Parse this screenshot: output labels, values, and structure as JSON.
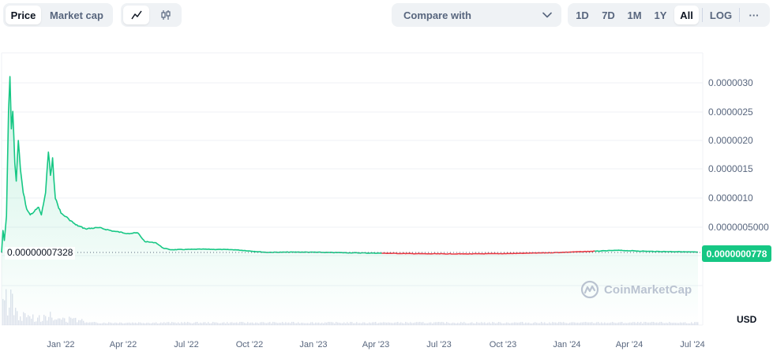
{
  "toolbar": {
    "type_tabs": [
      {
        "label": "Price",
        "active": true
      },
      {
        "label": "Market cap",
        "active": false
      }
    ],
    "chart_types": [
      {
        "icon": "line-chart-icon",
        "active": true
      },
      {
        "icon": "candlestick-icon",
        "active": false
      }
    ],
    "compare_label": "Compare with",
    "ranges": [
      {
        "label": "1D",
        "active": false
      },
      {
        "label": "7D",
        "active": false
      },
      {
        "label": "1M",
        "active": false
      },
      {
        "label": "1Y",
        "active": false
      },
      {
        "label": "All",
        "active": true
      }
    ],
    "log_label": "LOG",
    "more_label": "···"
  },
  "current_price": "0.0000000778",
  "start_price": "0.00000007328",
  "currency": "USD",
  "watermark": "CoinMarketCap",
  "colors": {
    "up": "#16c784",
    "down": "#ea3943",
    "grid": "#eff2f5",
    "text": "#58667e"
  },
  "chart_data": {
    "type": "line",
    "title": "",
    "xlabel": "",
    "ylabel": "",
    "x_ticks": [
      "Jan '22",
      "Apr '22",
      "Jul '22",
      "Oct '22",
      "Jan '23",
      "Apr '23",
      "Jul '23",
      "Oct '23",
      "Jan '24",
      "Apr '24",
      "Jul '24"
    ],
    "y_ticks": [
      "0.0000030",
      "0.0000025",
      "0.0000020",
      "0.0000015",
      "0.0000010",
      "0.0000005000"
    ],
    "ylim": [
      0,
      3.3e-06
    ],
    "series": [
      {
        "values": [
          [
            "2021-11-01",
            7.328e-08
          ],
          [
            "2021-11-03",
            4.5e-07
          ],
          [
            "2021-11-05",
            2.8e-07
          ],
          [
            "2021-11-08",
            7e-07
          ],
          [
            "2021-11-11",
            2.5e-06
          ],
          [
            "2021-11-13",
            3.1e-06
          ],
          [
            "2021-11-15",
            2.2e-06
          ],
          [
            "2021-11-17",
            2.5e-06
          ],
          [
            "2021-11-20",
            1.6e-06
          ],
          [
            "2021-11-22",
            1.3e-06
          ],
          [
            "2021-11-25",
            2e-06
          ],
          [
            "2021-11-28",
            1.5e-06
          ],
          [
            "2021-12-02",
            1.1e-06
          ],
          [
            "2021-12-07",
            8.2e-07
          ],
          [
            "2021-12-12",
            7.2e-07
          ],
          [
            "2021-12-18",
            7.8e-07
          ],
          [
            "2021-12-24",
            8.5e-07
          ],
          [
            "2021-12-28",
            7.2e-07
          ],
          [
            "2022-01-03",
            1.1e-06
          ],
          [
            "2022-01-07",
            1.8e-06
          ],
          [
            "2022-01-10",
            1.4e-06
          ],
          [
            "2022-01-13",
            1.7e-06
          ],
          [
            "2022-01-17",
            1e-06
          ],
          [
            "2022-01-25",
            7.5e-07
          ],
          [
            "2022-02-05",
            6.5e-07
          ],
          [
            "2022-02-15",
            5.5e-07
          ],
          [
            "2022-03-01",
            4.8e-07
          ],
          [
            "2022-03-20",
            5e-07
          ],
          [
            "2022-04-10",
            4.4e-07
          ],
          [
            "2022-05-01",
            4e-07
          ],
          [
            "2022-05-15",
            4.1e-07
          ],
          [
            "2022-05-25",
            2.6e-07
          ],
          [
            "2022-06-10",
            2.4e-07
          ],
          [
            "2022-06-20",
            1.5e-07
          ],
          [
            "2022-07-01",
            1.2e-07
          ],
          [
            "2022-08-15",
            1.3e-07
          ],
          [
            "2022-10-01",
            1.2e-07
          ],
          [
            "2022-11-15",
            7.5e-08
          ],
          [
            "2023-01-01",
            8e-08
          ],
          [
            "2023-03-01",
            7e-08
          ],
          [
            "2023-05-01",
            6e-08
          ],
          [
            "2023-07-01",
            5e-08
          ],
          [
            "2023-09-01",
            4.8e-08
          ],
          [
            "2023-11-01",
            5.5e-08
          ],
          [
            "2024-01-01",
            7e-08
          ],
          [
            "2024-03-01",
            9.5e-08
          ],
          [
            "2024-04-01",
            1.1e-07
          ],
          [
            "2024-05-15",
            9.2e-08
          ],
          [
            "2024-07-01",
            8.5e-08
          ],
          [
            "2024-07-25",
            7.78e-08
          ]
        ]
      }
    ],
    "red_range": [
      "2023-03-20",
      "2024-01-10"
    ]
  }
}
